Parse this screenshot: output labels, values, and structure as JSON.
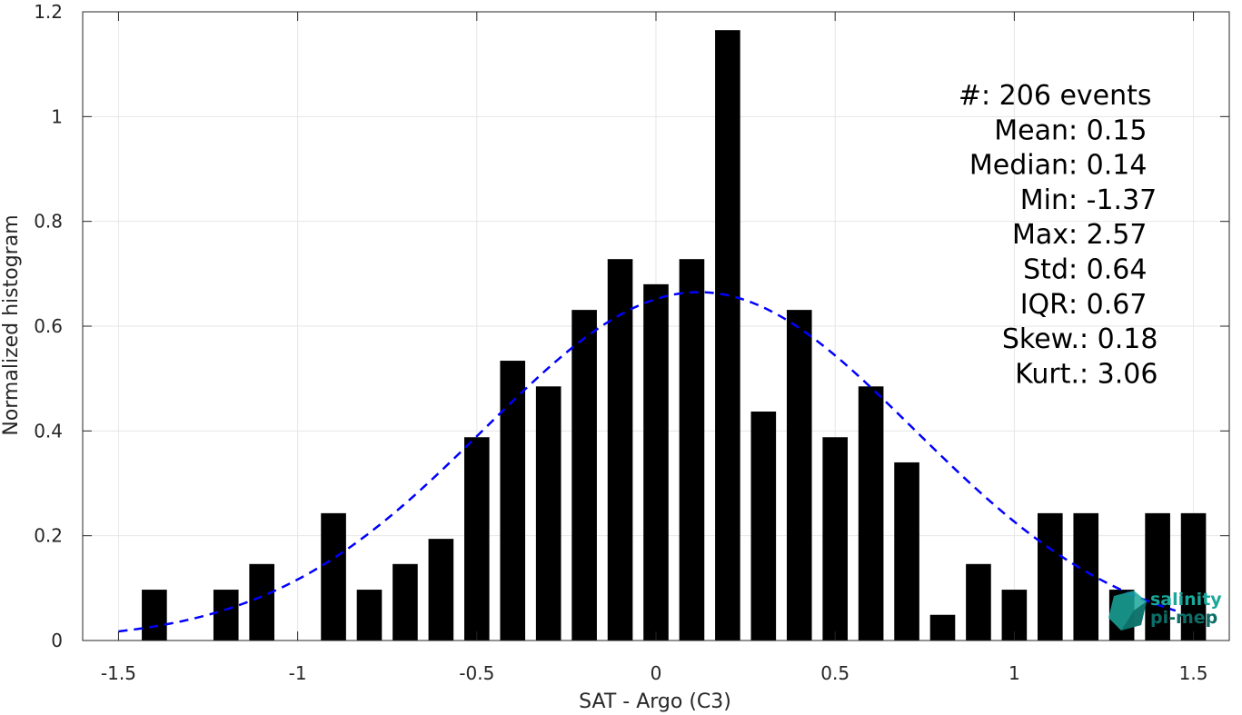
{
  "chart_data": {
    "type": "bar",
    "xlabel": "SAT - Argo (C3)",
    "ylabel": "Normalized histogram",
    "xlim": [
      -1.6,
      1.6
    ],
    "ylim": [
      0,
      1.2
    ],
    "grid": true,
    "x_ticks": [
      -1.5,
      -1,
      -0.5,
      0,
      0.5,
      1,
      1.5
    ],
    "x_tick_labels": [
      "-1.5",
      "-1",
      "-0.5",
      "0",
      "0.5",
      "1",
      "1.5"
    ],
    "y_ticks": [
      0,
      0.2,
      0.4,
      0.6,
      0.8,
      1,
      1.2
    ],
    "y_tick_labels": [
      "0",
      "0.2",
      "0.4",
      "0.6",
      "0.8",
      "1",
      "1.2"
    ],
    "bin_width": 0.1,
    "bar_width": 0.07,
    "bars": {
      "x": [
        -1.4,
        -1.2,
        -1.1,
        -0.9,
        -0.8,
        -0.7,
        -0.6,
        -0.5,
        -0.4,
        -0.3,
        -0.2,
        -0.1,
        0.0,
        0.1,
        0.2,
        0.3,
        0.4,
        0.5,
        0.6,
        0.7,
        0.8,
        0.9,
        1.0,
        1.1,
        1.2,
        1.3,
        1.4,
        1.5
      ],
      "values": [
        0.097,
        0.097,
        0.146,
        0.243,
        0.097,
        0.146,
        0.194,
        0.388,
        0.534,
        0.485,
        0.631,
        0.728,
        0.68,
        0.728,
        1.165,
        0.437,
        0.631,
        0.388,
        0.485,
        0.34,
        0.049,
        0.146,
        0.097,
        0.243,
        0.243,
        0.097,
        0.243,
        0.243
      ],
      "color": "#000000"
    },
    "series": [
      {
        "type": "line",
        "style": "dashed",
        "color": "#0000ff",
        "mean": 0.12,
        "std": 0.6,
        "x_range": [
          -1.5,
          1.45
        ]
      }
    ],
    "annotation_lines": [
      {
        "label": "#  ",
        "value": ": 206 events"
      },
      {
        "label": "Mean ",
        "value": ": 0.15"
      },
      {
        "label": "Median ",
        "value": ": 0.14"
      },
      {
        "label": "Min ",
        "value": ": -1.37"
      },
      {
        "label": "Max ",
        "value": ": 2.57"
      },
      {
        "label": "Std ",
        "value": ": 0.64"
      },
      {
        "label": "IQR ",
        "value": ": 0.67"
      },
      {
        "label": "Skew. ",
        "value": ": 0.18"
      },
      {
        "label": "Kurt. ",
        "value": ": 3.06"
      }
    ],
    "logo": {
      "line1": "salinity",
      "line2": "pi-mep"
    }
  },
  "colors": {
    "bars": "#000000",
    "fit": "#0000ff",
    "logo": "#1aa79a",
    "logo_dark": "#0d6e67"
  }
}
